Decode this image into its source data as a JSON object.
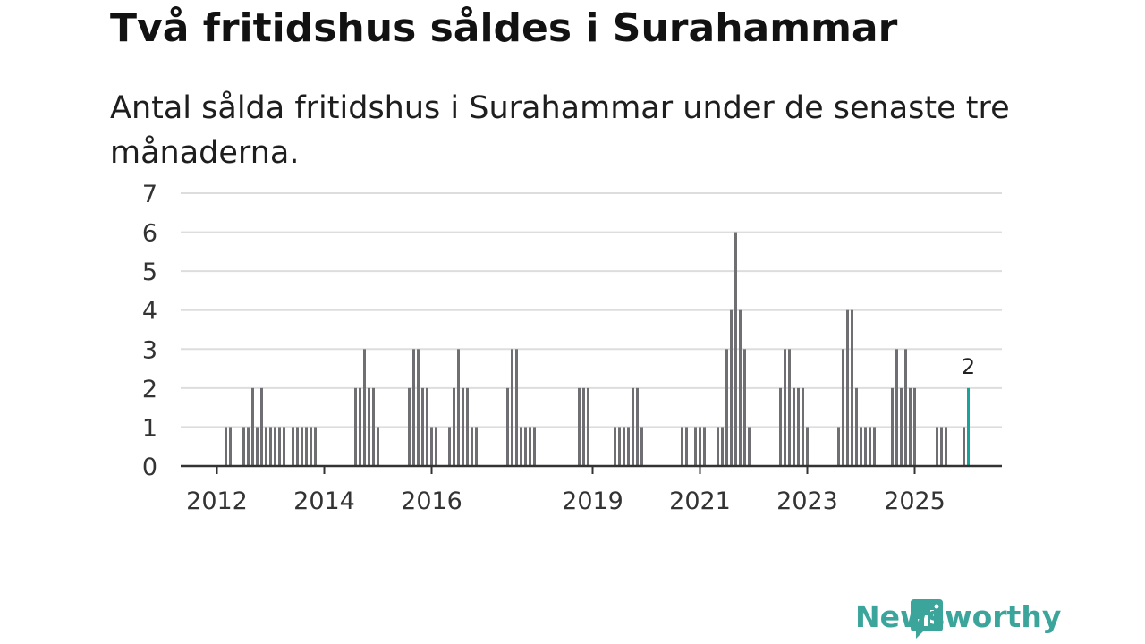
{
  "title": "Två fritidshus såldes i Surahammar",
  "subtitle": "Antal sålda fritidshus i Surahammar under de senaste tre månaderna.",
  "brand": {
    "name": "Newsworthy",
    "color": "#3ba59b",
    "icon": "newsworthy-bar-chart-logo-icon"
  },
  "colors": {
    "bar": "#6e6e73",
    "highlight": "#1aa39a",
    "grid": "#dddddd",
    "axis": "#333333"
  },
  "chart_data": {
    "type": "bar",
    "x_unit": "month",
    "ylim": [
      0,
      7
    ],
    "yticks": [
      0,
      1,
      2,
      3,
      4,
      5,
      6,
      7
    ],
    "xticks": [
      "2012",
      "2014",
      "2016",
      "2019",
      "2021",
      "2023",
      "2025"
    ],
    "grid": true,
    "legend": "none",
    "series": [
      {
        "values": [
          {
            "x": "2012-03",
            "y": 1
          },
          {
            "x": "2012-04",
            "y": 1
          },
          {
            "x": "2012-07",
            "y": 1
          },
          {
            "x": "2012-08",
            "y": 1
          },
          {
            "x": "2012-09",
            "y": 2
          },
          {
            "x": "2012-10",
            "y": 1
          },
          {
            "x": "2012-11",
            "y": 2
          },
          {
            "x": "2012-12",
            "y": 1
          },
          {
            "x": "2013-01",
            "y": 1
          },
          {
            "x": "2013-02",
            "y": 1
          },
          {
            "x": "2013-03",
            "y": 1
          },
          {
            "x": "2013-04",
            "y": 1
          },
          {
            "x": "2013-06",
            "y": 1
          },
          {
            "x": "2013-07",
            "y": 1
          },
          {
            "x": "2013-08",
            "y": 1
          },
          {
            "x": "2013-09",
            "y": 1
          },
          {
            "x": "2013-10",
            "y": 1
          },
          {
            "x": "2013-11",
            "y": 1
          },
          {
            "x": "2014-08",
            "y": 2
          },
          {
            "x": "2014-09",
            "y": 2
          },
          {
            "x": "2014-10",
            "y": 3
          },
          {
            "x": "2014-11",
            "y": 2
          },
          {
            "x": "2014-12",
            "y": 2
          },
          {
            "x": "2015-01",
            "y": 1
          },
          {
            "x": "2015-08",
            "y": 2
          },
          {
            "x": "2015-09",
            "y": 3
          },
          {
            "x": "2015-10",
            "y": 3
          },
          {
            "x": "2015-11",
            "y": 2
          },
          {
            "x": "2015-12",
            "y": 2
          },
          {
            "x": "2016-01",
            "y": 1
          },
          {
            "x": "2016-02",
            "y": 1
          },
          {
            "x": "2016-05",
            "y": 1
          },
          {
            "x": "2016-06",
            "y": 2
          },
          {
            "x": "2016-07",
            "y": 3
          },
          {
            "x": "2016-08",
            "y": 2
          },
          {
            "x": "2016-09",
            "y": 2
          },
          {
            "x": "2016-10",
            "y": 1
          },
          {
            "x": "2016-11",
            "y": 1
          },
          {
            "x": "2017-06",
            "y": 2
          },
          {
            "x": "2017-07",
            "y": 3
          },
          {
            "x": "2017-08",
            "y": 3
          },
          {
            "x": "2017-09",
            "y": 1
          },
          {
            "x": "2017-10",
            "y": 1
          },
          {
            "x": "2017-11",
            "y": 1
          },
          {
            "x": "2017-12",
            "y": 1
          },
          {
            "x": "2018-10",
            "y": 2
          },
          {
            "x": "2018-11",
            "y": 2
          },
          {
            "x": "2018-12",
            "y": 2
          },
          {
            "x": "2019-06",
            "y": 1
          },
          {
            "x": "2019-07",
            "y": 1
          },
          {
            "x": "2019-08",
            "y": 1
          },
          {
            "x": "2019-09",
            "y": 1
          },
          {
            "x": "2019-10",
            "y": 2
          },
          {
            "x": "2019-11",
            "y": 2
          },
          {
            "x": "2019-12",
            "y": 1
          },
          {
            "x": "2020-09",
            "y": 1
          },
          {
            "x": "2020-10",
            "y": 1
          },
          {
            "x": "2020-12",
            "y": 1
          },
          {
            "x": "2021-01",
            "y": 1
          },
          {
            "x": "2021-02",
            "y": 1
          },
          {
            "x": "2021-05",
            "y": 1
          },
          {
            "x": "2021-06",
            "y": 1
          },
          {
            "x": "2021-07",
            "y": 3
          },
          {
            "x": "2021-08",
            "y": 4
          },
          {
            "x": "2021-09",
            "y": 6
          },
          {
            "x": "2021-10",
            "y": 4
          },
          {
            "x": "2021-11",
            "y": 3
          },
          {
            "x": "2021-12",
            "y": 1
          },
          {
            "x": "2022-07",
            "y": 2
          },
          {
            "x": "2022-08",
            "y": 3
          },
          {
            "x": "2022-09",
            "y": 3
          },
          {
            "x": "2022-10",
            "y": 2
          },
          {
            "x": "2022-11",
            "y": 2
          },
          {
            "x": "2022-12",
            "y": 2
          },
          {
            "x": "2023-01",
            "y": 1
          },
          {
            "x": "2023-08",
            "y": 1
          },
          {
            "x": "2023-09",
            "y": 3
          },
          {
            "x": "2023-10",
            "y": 4
          },
          {
            "x": "2023-11",
            "y": 4
          },
          {
            "x": "2023-12",
            "y": 2
          },
          {
            "x": "2024-01",
            "y": 1
          },
          {
            "x": "2024-02",
            "y": 1
          },
          {
            "x": "2024-03",
            "y": 1
          },
          {
            "x": "2024-04",
            "y": 1
          },
          {
            "x": "2024-08",
            "y": 2
          },
          {
            "x": "2024-09",
            "y": 3
          },
          {
            "x": "2024-10",
            "y": 2
          },
          {
            "x": "2024-11",
            "y": 3
          },
          {
            "x": "2024-12",
            "y": 2
          },
          {
            "x": "2025-01",
            "y": 2
          },
          {
            "x": "2025-06",
            "y": 1
          },
          {
            "x": "2025-07",
            "y": 1
          },
          {
            "x": "2025-08",
            "y": 1
          },
          {
            "x": "2025-12",
            "y": 1
          }
        ]
      }
    ],
    "highlight": {
      "x": "2026-01",
      "y": 2,
      "label": "2"
    }
  }
}
